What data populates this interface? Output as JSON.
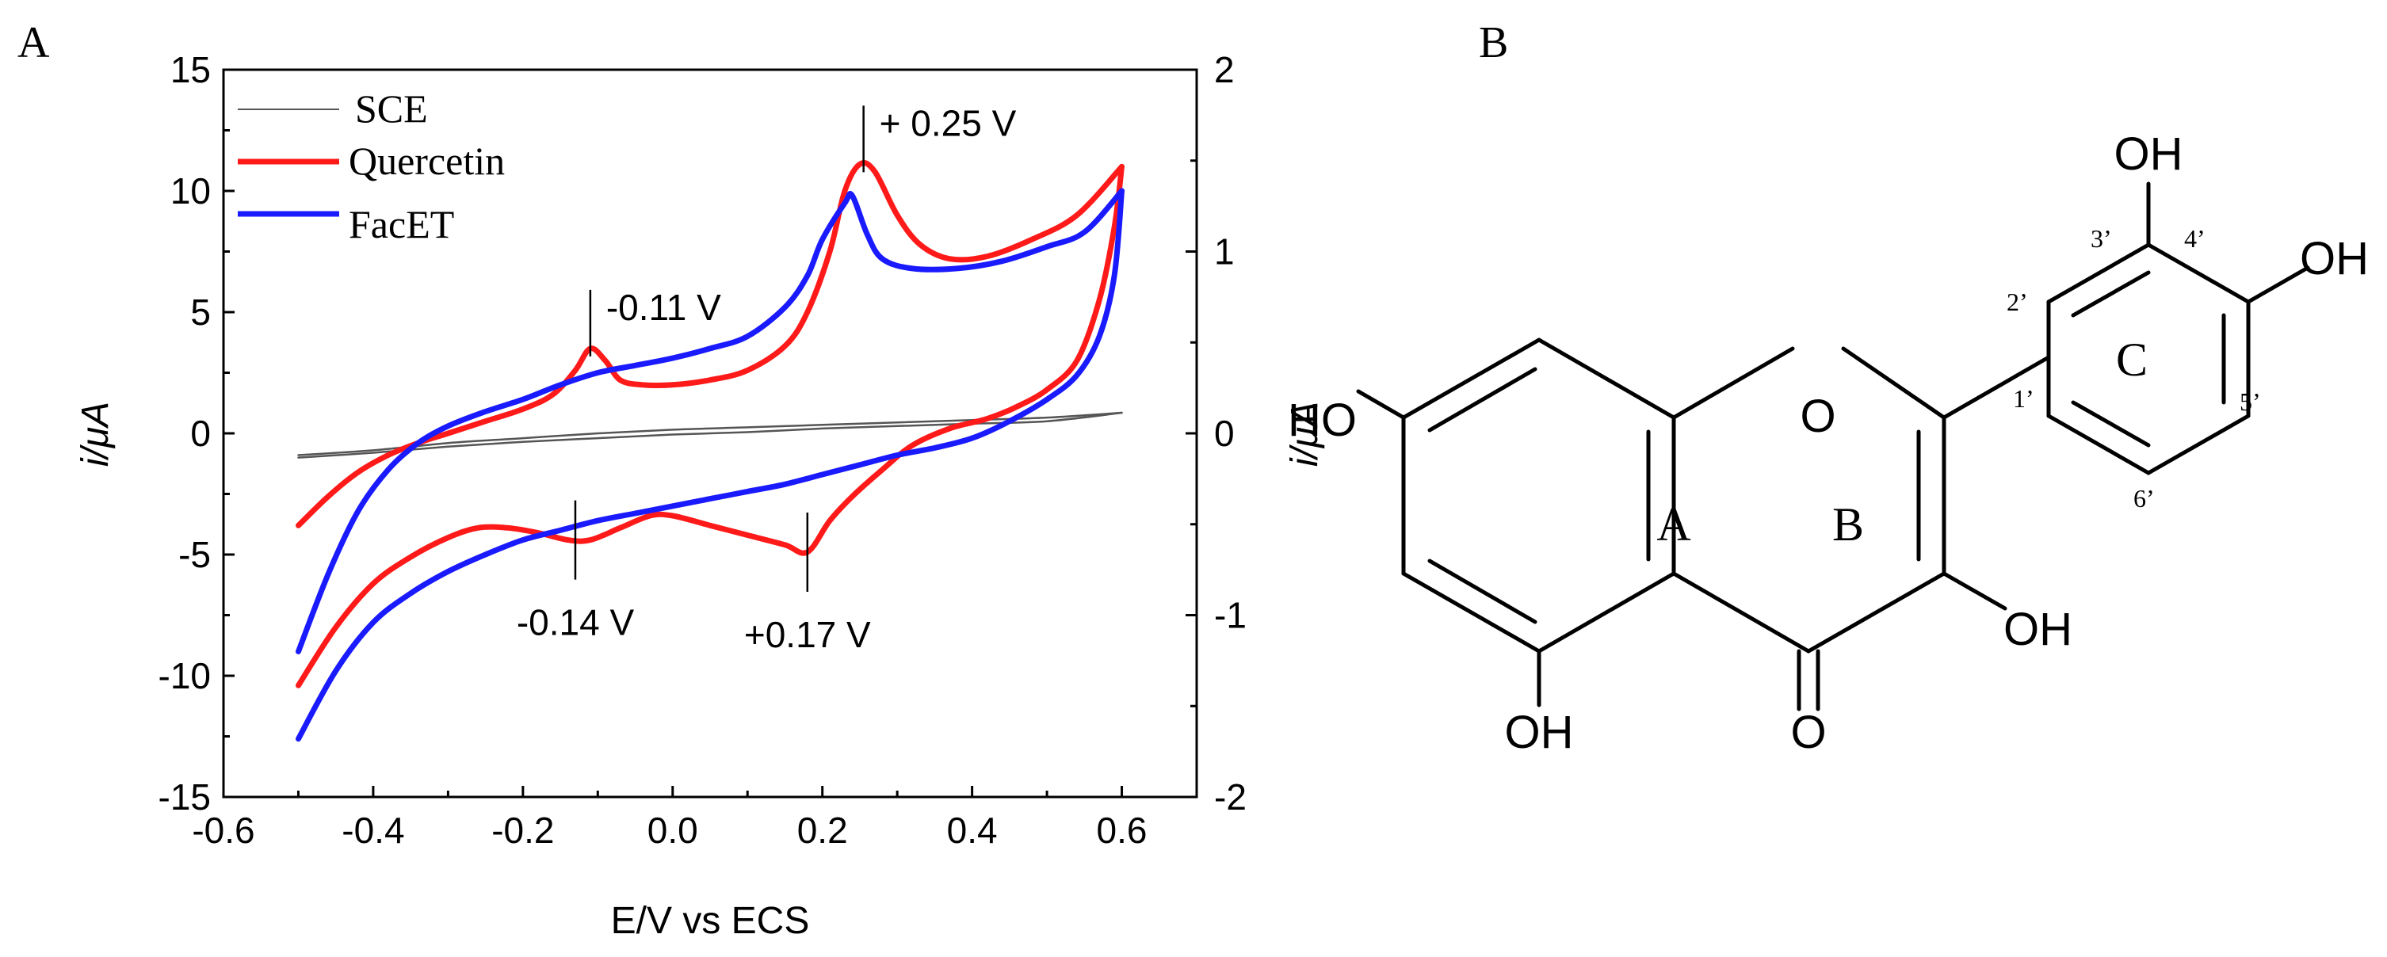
{
  "panels": {
    "a_label": "A",
    "b_label": "B"
  },
  "chart_data": {
    "type": "line",
    "xlabel": "E/V vs ECS",
    "ylabel": "i/μA",
    "ylabel_right": "i/μA",
    "xlim": [
      -0.6,
      0.7
    ],
    "ylim": [
      -15,
      15
    ],
    "ylim_right": [
      -2,
      2
    ],
    "x_ticks": [
      "-0.6",
      "-0.4",
      "-0.2",
      "0.0",
      "0.2",
      "0.4",
      "0.6"
    ],
    "y_ticks": [
      "15",
      "10",
      "5",
      "0",
      "-5",
      "-10",
      "-15"
    ],
    "y_ticks_right": [
      "2",
      "1",
      "0",
      "-1",
      "-2"
    ],
    "legend_position": "top-left",
    "series": [
      {
        "name": "SCE",
        "color": "#555555",
        "axis": "left",
        "forward": [
          [
            -0.5,
            -0.9
          ],
          [
            -0.4,
            -0.7
          ],
          [
            -0.3,
            -0.4
          ],
          [
            -0.2,
            -0.2
          ],
          [
            -0.1,
            0.0
          ],
          [
            0.0,
            0.15
          ],
          [
            0.1,
            0.25
          ],
          [
            0.2,
            0.35
          ],
          [
            0.3,
            0.45
          ],
          [
            0.4,
            0.55
          ],
          [
            0.5,
            0.65
          ],
          [
            0.6,
            0.85
          ]
        ],
        "reverse": [
          [
            0.6,
            0.85
          ],
          [
            0.5,
            0.5
          ],
          [
            0.4,
            0.4
          ],
          [
            0.3,
            0.3
          ],
          [
            0.2,
            0.2
          ],
          [
            0.1,
            0.05
          ],
          [
            0.0,
            -0.05
          ],
          [
            -0.1,
            -0.2
          ],
          [
            -0.2,
            -0.35
          ],
          [
            -0.3,
            -0.55
          ],
          [
            -0.4,
            -0.8
          ],
          [
            -0.5,
            -1.0
          ]
        ]
      },
      {
        "name": "Quercetin",
        "color": "#ff1a1a",
        "axis": "left",
        "forward": [
          [
            -0.5,
            -3.8
          ],
          [
            -0.46,
            -2.6
          ],
          [
            -0.42,
            -1.6
          ],
          [
            -0.38,
            -0.9
          ],
          [
            -0.34,
            -0.4
          ],
          [
            -0.3,
            0.0
          ],
          [
            -0.25,
            0.5
          ],
          [
            -0.2,
            1.0
          ],
          [
            -0.16,
            1.6
          ],
          [
            -0.13,
            2.6
          ],
          [
            -0.11,
            3.5
          ],
          [
            -0.09,
            3.0
          ],
          [
            -0.07,
            2.2
          ],
          [
            -0.04,
            2.0
          ],
          [
            0.0,
            2.0
          ],
          [
            0.05,
            2.2
          ],
          [
            0.1,
            2.6
          ],
          [
            0.15,
            3.6
          ],
          [
            0.18,
            5.0
          ],
          [
            0.21,
            7.5
          ],
          [
            0.23,
            10.0
          ],
          [
            0.25,
            11.1
          ],
          [
            0.27,
            10.8
          ],
          [
            0.3,
            9.0
          ],
          [
            0.33,
            7.8
          ],
          [
            0.37,
            7.2
          ],
          [
            0.42,
            7.3
          ],
          [
            0.48,
            8.0
          ],
          [
            0.54,
            9.0
          ],
          [
            0.6,
            11.0
          ]
        ],
        "reverse": [
          [
            0.6,
            11.0
          ],
          [
            0.59,
            8.5
          ],
          [
            0.57,
            5.5
          ],
          [
            0.54,
            3.0
          ],
          [
            0.5,
            1.8
          ],
          [
            0.46,
            1.1
          ],
          [
            0.42,
            0.6
          ],
          [
            0.37,
            0.2
          ],
          [
            0.32,
            -0.5
          ],
          [
            0.28,
            -1.5
          ],
          [
            0.24,
            -2.6
          ],
          [
            0.21,
            -3.6
          ],
          [
            0.18,
            -4.9
          ],
          [
            0.15,
            -4.6
          ],
          [
            0.1,
            -4.2
          ],
          [
            0.05,
            -3.8
          ],
          [
            0.0,
            -3.4
          ],
          [
            -0.03,
            -3.4
          ],
          [
            -0.07,
            -3.9
          ],
          [
            -0.11,
            -4.4
          ],
          [
            -0.14,
            -4.4
          ],
          [
            -0.18,
            -4.1
          ],
          [
            -0.22,
            -3.9
          ],
          [
            -0.26,
            -3.9
          ],
          [
            -0.3,
            -4.3
          ],
          [
            -0.35,
            -5.1
          ],
          [
            -0.4,
            -6.2
          ],
          [
            -0.45,
            -8.0
          ],
          [
            -0.5,
            -10.4
          ]
        ]
      },
      {
        "name": "FacET",
        "color": "#1a1aff",
        "axis": "left",
        "forward": [
          [
            -0.5,
            -9.0
          ],
          [
            -0.46,
            -5.8
          ],
          [
            -0.42,
            -3.2
          ],
          [
            -0.38,
            -1.5
          ],
          [
            -0.34,
            -0.4
          ],
          [
            -0.3,
            0.3
          ],
          [
            -0.25,
            0.9
          ],
          [
            -0.2,
            1.4
          ],
          [
            -0.15,
            2.0
          ],
          [
            -0.1,
            2.5
          ],
          [
            -0.05,
            2.8
          ],
          [
            0.0,
            3.1
          ],
          [
            0.05,
            3.5
          ],
          [
            0.1,
            4.0
          ],
          [
            0.15,
            5.2
          ],
          [
            0.18,
            6.5
          ],
          [
            0.2,
            8.0
          ],
          [
            0.23,
            9.5
          ],
          [
            0.24,
            9.8
          ],
          [
            0.26,
            8.2
          ],
          [
            0.28,
            7.2
          ],
          [
            0.32,
            6.8
          ],
          [
            0.38,
            6.8
          ],
          [
            0.44,
            7.1
          ],
          [
            0.5,
            7.7
          ],
          [
            0.55,
            8.3
          ],
          [
            0.6,
            10.0
          ]
        ],
        "reverse": [
          [
            0.6,
            10.0
          ],
          [
            0.59,
            6.5
          ],
          [
            0.57,
            4.0
          ],
          [
            0.54,
            2.4
          ],
          [
            0.5,
            1.4
          ],
          [
            0.45,
            0.5
          ],
          [
            0.4,
            -0.2
          ],
          [
            0.35,
            -0.6
          ],
          [
            0.3,
            -0.9
          ],
          [
            0.25,
            -1.3
          ],
          [
            0.2,
            -1.7
          ],
          [
            0.15,
            -2.1
          ],
          [
            0.1,
            -2.4
          ],
          [
            0.05,
            -2.7
          ],
          [
            0.0,
            -3.0
          ],
          [
            -0.05,
            -3.3
          ],
          [
            -0.1,
            -3.6
          ],
          [
            -0.15,
            -4.0
          ],
          [
            -0.2,
            -4.4
          ],
          [
            -0.25,
            -5.0
          ],
          [
            -0.3,
            -5.7
          ],
          [
            -0.35,
            -6.6
          ],
          [
            -0.4,
            -7.8
          ],
          [
            -0.45,
            -9.8
          ],
          [
            -0.5,
            -12.6
          ]
        ]
      }
    ],
    "annotations": [
      {
        "text": "+ 0.25 V",
        "x": 0.255,
        "y": 11.1,
        "dir": "up"
      },
      {
        "text": "-0.11 V",
        "x": -0.11,
        "y": 3.5,
        "dir": "up"
      },
      {
        "text": "-0.14 V",
        "x": -0.13,
        "y": -4.4,
        "dir": "down"
      },
      {
        "text": "+0.17 V",
        "x": 0.18,
        "y": -4.9,
        "dir": "down"
      }
    ]
  },
  "molecule": {
    "atoms": {
      "oh_top": "OH",
      "oh_right": "OH",
      "ho_left": "HO",
      "o_ring": "O",
      "oh_bottom_right": "OH",
      "oh_bottom_left": "OH",
      "o_carbonyl": "O"
    },
    "rings": {
      "a": "A",
      "b": "B",
      "c": "C"
    },
    "positions": {
      "p2": "2’",
      "p3": "3’",
      "p4": "4’",
      "p1": "1’",
      "p5": "5’",
      "p6": "6’"
    }
  }
}
